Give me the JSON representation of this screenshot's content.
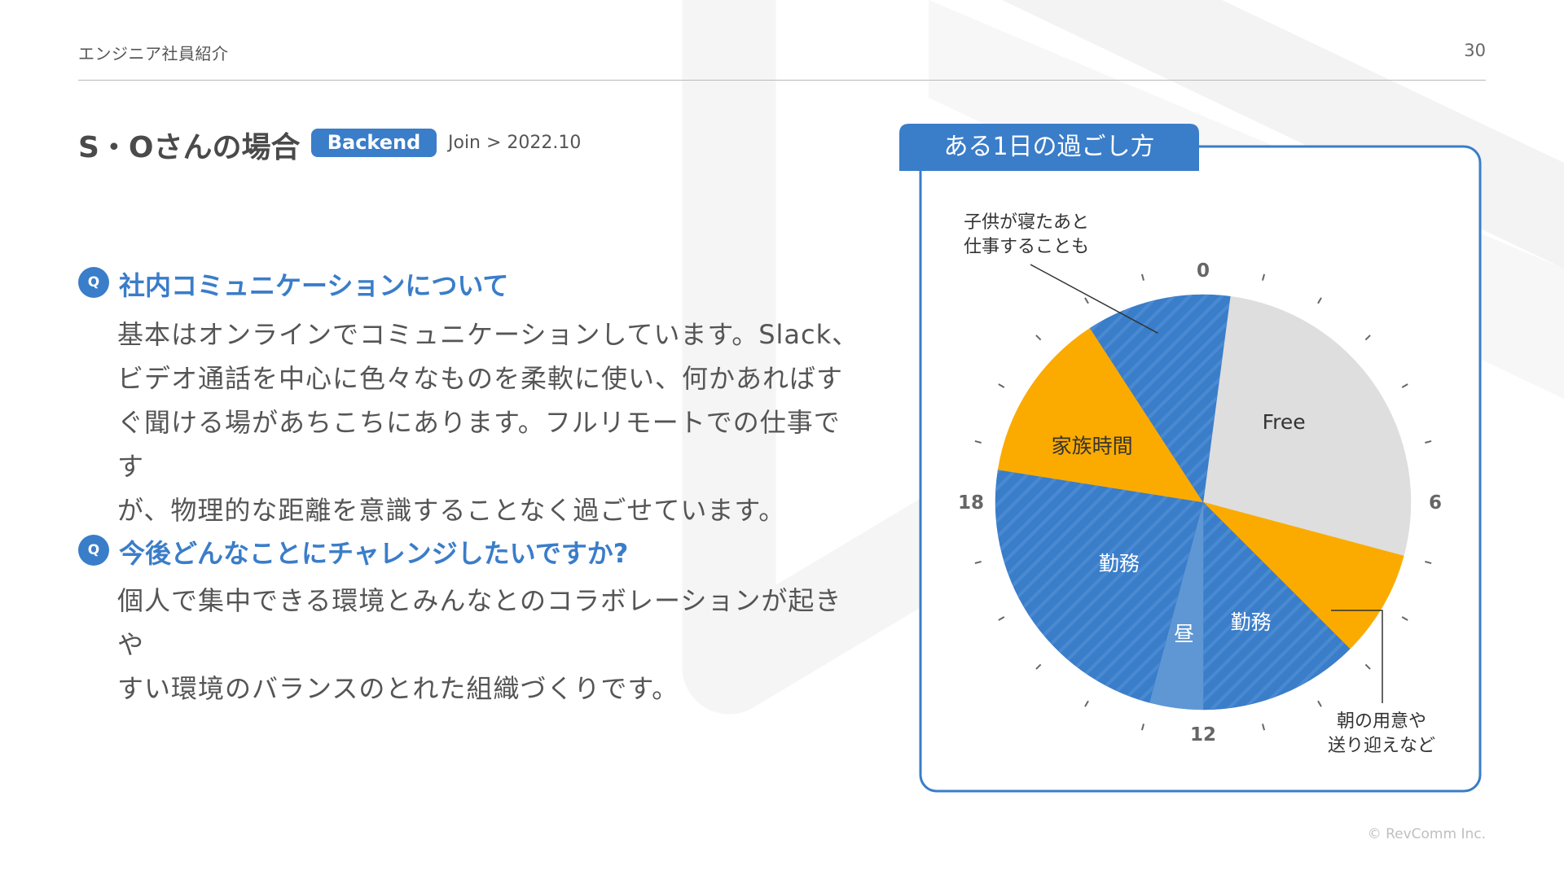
{
  "header": {
    "section": "エンジニア社員紹介",
    "page_number": "30"
  },
  "profile": {
    "name_title": "S・Oさんの場合",
    "badge": "Backend",
    "join": "Join > 2022.10"
  },
  "qa": [
    {
      "icon": "Q",
      "question": "社内コミュニケーションについて",
      "answer_lines": [
        "基本はオンラインでコミュニケーションしています。Slack、",
        "ビデオ通話を中心に色々なものを柔軟に使い、何かあればす",
        "ぐ聞ける場があちこちにあります。フルリモートでの仕事です",
        "が、物理的な距離を意識することなく過ごせています。"
      ]
    },
    {
      "icon": "Q",
      "question": "今後どんなことにチャレンジしたいですか?",
      "answer_lines": [
        "個人で集中できる環境とみんなとのコラボレーションが起きや",
        "すい環境のバランスのとれた組織づくりです。"
      ]
    }
  ],
  "footer": {
    "copyright": "© RevComm Inc."
  },
  "colors": {
    "accent": "#3a7dc9",
    "free": "#dedede",
    "family": "#fbab00",
    "work": "#3a7dc9",
    "lunch": "#5e97d4",
    "text": "#555555"
  },
  "chart_data": {
    "type": "pie",
    "title": "ある1日の過ごし方",
    "unit": "hours",
    "start_hour": 0,
    "clockwise": true,
    "hour_labels": [
      {
        "hour": 0,
        "label": "0"
      },
      {
        "hour": 6,
        "label": "6"
      },
      {
        "hour": 12,
        "label": "12"
      },
      {
        "hour": 18,
        "label": "18"
      }
    ],
    "segments": [
      {
        "key": "free",
        "label": "Free",
        "start": 0.5,
        "end": 7.0,
        "color": "#dedede",
        "striped": false,
        "text_color": "#333333",
        "label_hour": 3.0,
        "label_r": 0.55
      },
      {
        "key": "morning",
        "label": "",
        "start": 7.0,
        "end": 9.0,
        "color": "#fbab00",
        "striped": false,
        "text_color": "#333333"
      },
      {
        "key": "work1",
        "label": "勤務",
        "start": 9.0,
        "end": 12.0,
        "color": "#3a7dc9",
        "striped": true,
        "text_color": "#ffffff",
        "label_hour": 10.55,
        "label_r": 0.62
      },
      {
        "key": "lunch",
        "label": "昼",
        "start": 12.0,
        "end": 13.0,
        "color": "#5e97d4",
        "striped": false,
        "text_color": "#ffffff",
        "label_hour": 12.55,
        "label_r": 0.64
      },
      {
        "key": "work2",
        "label": "勤務",
        "start": 13.0,
        "end": 18.6,
        "color": "#3a7dc9",
        "striped": true,
        "text_color": "#ffffff",
        "label_hour": 15.6,
        "label_r": 0.5
      },
      {
        "key": "family",
        "label": "家族時間",
        "start": 18.6,
        "end": 21.8,
        "color": "#fbab00",
        "striped": false,
        "text_color": "#333333",
        "label_hour": 19.8,
        "label_r": 0.6
      },
      {
        "key": "night",
        "label": "",
        "start": 21.8,
        "end": 24.5,
        "color": "#3a7dc9",
        "striped": true,
        "text_color": "#ffffff"
      }
    ],
    "callouts": [
      {
        "key": "night-callout",
        "lines": [
          "子供が寝たあと",
          "仕事することも"
        ],
        "hour": 23.0
      },
      {
        "key": "morning-callout",
        "lines": [
          "朝の用意や",
          "送り迎えなど"
        ],
        "hour": 8.0
      }
    ]
  }
}
